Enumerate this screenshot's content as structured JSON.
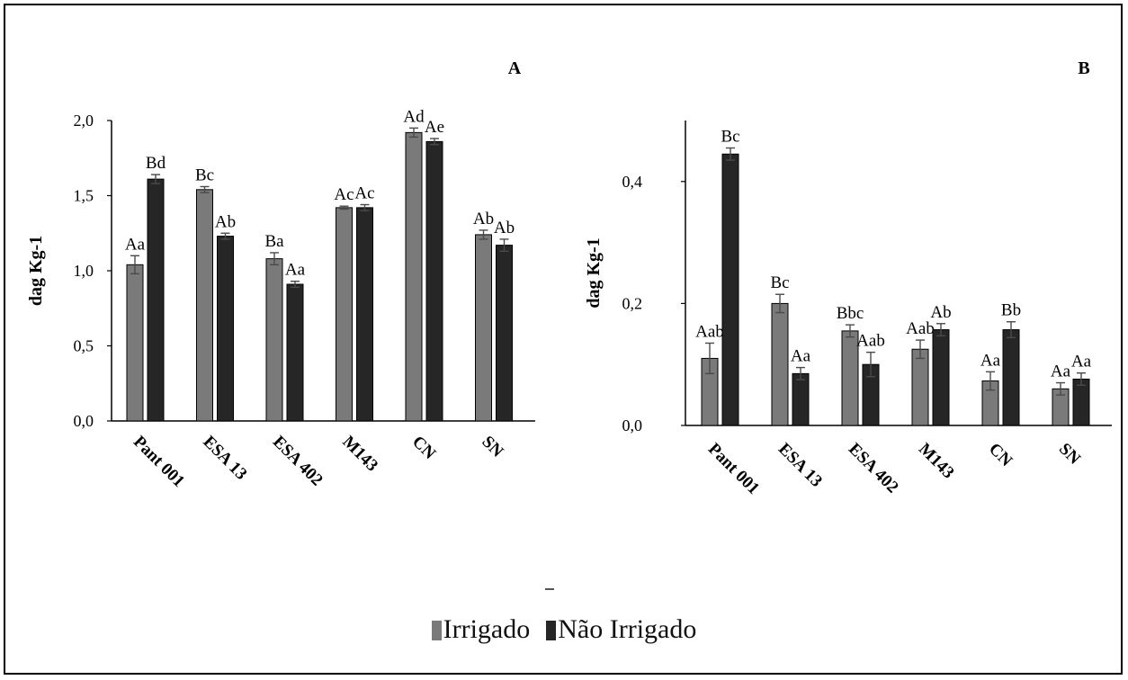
{
  "chart_data": [
    {
      "type": "bar",
      "panel_label": "A",
      "ylabel": "dag Kg-1",
      "categories": [
        "Pant 001",
        "ESA 13",
        "ESA 402",
        "M143",
        "CN",
        "SN"
      ],
      "ylim": [
        0,
        2.0
      ],
      "yticks": [
        "0,0",
        "0,5",
        "1,0",
        "1,5",
        "2,0"
      ],
      "series": [
        {
          "name": "Irrigado",
          "values": [
            1.04,
            1.54,
            1.08,
            1.42,
            1.92,
            1.24
          ],
          "errors": [
            0.06,
            0.02,
            0.04,
            0.01,
            0.03,
            0.03
          ],
          "labels": [
            "Aa",
            "Bc",
            "Ba",
            "Ac",
            "Ad",
            "Ab"
          ]
        },
        {
          "name": "Não Irrigado",
          "values": [
            1.61,
            1.23,
            0.91,
            1.42,
            1.86,
            1.17
          ],
          "errors": [
            0.03,
            0.02,
            0.02,
            0.02,
            0.02,
            0.04
          ],
          "labels": [
            "Bd",
            "Ab",
            "Aa",
            "Ac",
            "Ae",
            "Ab"
          ]
        }
      ]
    },
    {
      "type": "bar",
      "panel_label": "B",
      "ylabel": "dag Kg-1",
      "categories": [
        "Pant 001",
        "ESA 13",
        "ESA 402",
        "M143",
        "CN",
        "SN"
      ],
      "ylim": [
        0,
        0.5
      ],
      "yticks": [
        "0,0",
        "0,2",
        "0,4"
      ],
      "series": [
        {
          "name": "Irrigado",
          "values": [
            0.11,
            0.2,
            0.155,
            0.125,
            0.073,
            0.06
          ],
          "errors": [
            0.025,
            0.015,
            0.01,
            0.015,
            0.015,
            0.01
          ],
          "labels": [
            "Aab",
            "Bc",
            "Bbc",
            "Aab",
            "Aa",
            "Aa"
          ]
        },
        {
          "name": "Não Irrigado",
          "values": [
            0.445,
            0.085,
            0.1,
            0.157,
            0.157,
            0.076
          ],
          "errors": [
            0.01,
            0.01,
            0.02,
            0.01,
            0.013,
            0.01
          ],
          "labels": [
            "Bc",
            "Aa",
            "Aab",
            "Ab",
            "Bb",
            "Aa"
          ]
        }
      ]
    }
  ],
  "legend": {
    "items": [
      {
        "label": "Irrigado",
        "color": "#7a7a7a"
      },
      {
        "label": "Não Irrigado",
        "color": "#262626"
      }
    ]
  },
  "colors": {
    "irrigado": "#7a7a7a",
    "nao_irrigado": "#262626",
    "error_bar": "#4a4a4a"
  }
}
